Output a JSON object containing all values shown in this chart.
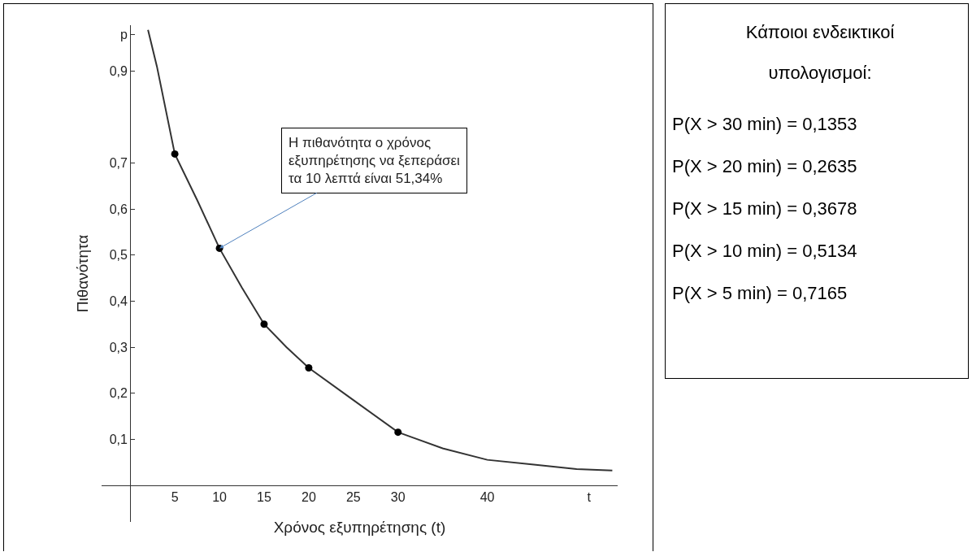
{
  "chart_data": [
    {
      "type": "line",
      "xlabel": "Χρόνος εξυπηρέτησης (t)",
      "ylabel": "Πιθανότητα",
      "xlim": [
        -3.2,
        54.6
      ],
      "ylim": [
        -0.08,
        1.0
      ],
      "xticks": [
        5,
        10,
        15,
        20,
        25,
        30,
        40,
        {
          "value": 51.4,
          "label": "t"
        }
      ],
      "yticks": [
        {
          "value": 0.1,
          "label": "0,1"
        },
        {
          "value": 0.2,
          "label": "0,2"
        },
        {
          "value": 0.3,
          "label": "0,3"
        },
        {
          "value": 0.4,
          "label": "0,4"
        },
        {
          "value": 0.5,
          "label": "0,5"
        },
        {
          "value": 0.6,
          "label": "0,6"
        },
        {
          "value": 0.7,
          "label": "0,7"
        },
        {
          "value": 0.9,
          "label": "0,9"
        },
        {
          "value": 0.98,
          "label": "p"
        }
      ],
      "series": [
        {
          "type": "line",
          "marker": "none",
          "color": "#333333",
          "x": [
            2,
            3,
            5,
            7.5,
            10,
            12.5,
            15,
            17.5,
            20,
            25,
            30,
            35,
            40,
            45,
            50,
            54
          ],
          "values": [
            0.99,
            0.91,
            0.72,
            0.62,
            0.515,
            0.43,
            0.35,
            0.3,
            0.255,
            0.185,
            0.115,
            0.08,
            0.055,
            0.045,
            0.035,
            0.032
          ]
        },
        {
          "type": "scatter",
          "marker": "circle",
          "color": "#000000",
          "x": [
            5,
            10,
            15,
            20,
            30
          ],
          "values": [
            0.72,
            0.515,
            0.35,
            0.255,
            0.115
          ]
        }
      ],
      "annotations": [
        {
          "text": "Η πιθανότητα ο χρόνος\nεξυπηρέτησης να ξεπεράσει\nτα 10 λεπτά είναι 51,34%",
          "x": 10,
          "y": 0.515
        }
      ]
    },
    {
      "type": "other",
      "title": "Κάποιοι ενδεικτικοί\nυπολογισμοί:",
      "annotations": [
        "P(X > 30 min) = 0,1353",
        "P(X > 20 min) = 0,2635",
        "P(X > 15 min) = 0,3678",
        "P(X > 10 min) = 0,5134",
        "P(X > 5 min) = 0,7165"
      ]
    }
  ]
}
